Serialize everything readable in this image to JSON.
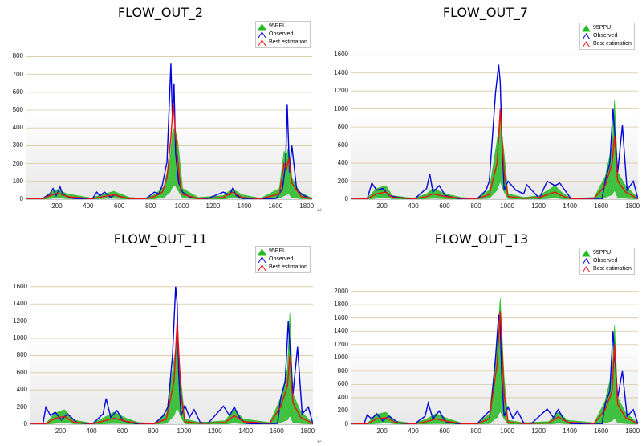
{
  "legend_labels": [
    "95PPU",
    "Observed",
    "Best estimation"
  ],
  "colors": {
    "ppu": "#22bb22",
    "observed": "#0000dd",
    "best": "#ee1111",
    "grid": "#d8c8a0"
  },
  "return_mark": "↵",
  "chart_data": [
    {
      "type": "line",
      "title": "FLOW_OUT_2",
      "xlim": [
        0,
        1830
      ],
      "ylim": [
        0,
        820
      ],
      "xticks": [
        200,
        400,
        600,
        800,
        1000,
        1200,
        1400,
        1600,
        1800
      ],
      "yticks": [
        0,
        100,
        200,
        300,
        400,
        500,
        600,
        700,
        800
      ],
      "grid": true,
      "legend_position": "top-right",
      "series": [
        {
          "name": "95PPU",
          "type": "band",
          "x": [
            0,
            100,
            160,
            200,
            260,
            420,
            460,
            560,
            600,
            660,
            760,
            820,
            880,
            920,
            935,
            950,
            970,
            1000,
            1100,
            1260,
            1320,
            1380,
            1500,
            1620,
            1650,
            1665,
            1680,
            1700,
            1750,
            1830
          ],
          "upper": [
            2,
            5,
            40,
            55,
            30,
            6,
            20,
            45,
            30,
            10,
            5,
            25,
            70,
            230,
            380,
            400,
            320,
            60,
            10,
            20,
            60,
            25,
            5,
            60,
            270,
            240,
            300,
            120,
            40,
            5
          ],
          "lower": [
            0,
            0,
            5,
            8,
            3,
            0,
            2,
            6,
            3,
            0,
            0,
            2,
            10,
            40,
            70,
            80,
            50,
            8,
            0,
            0,
            8,
            2,
            0,
            5,
            20,
            25,
            30,
            10,
            3,
            0
          ]
        },
        {
          "name": "Observed",
          "x": [
            0,
            100,
            150,
            170,
            190,
            215,
            230,
            260,
            300,
            420,
            450,
            470,
            500,
            540,
            560,
            600,
            650,
            760,
            820,
            850,
            870,
            900,
            925,
            935,
            945,
            955,
            975,
            1000,
            1050,
            1150,
            1260,
            1300,
            1320,
            1345,
            1370,
            1400,
            1500,
            1600,
            1640,
            1660,
            1670,
            1685,
            1700,
            1730,
            1760,
            1800,
            1830
          ],
          "y": [
            0,
            0,
            30,
            60,
            20,
            70,
            30,
            15,
            5,
            0,
            40,
            20,
            40,
            10,
            25,
            15,
            5,
            0,
            40,
            30,
            80,
            210,
            760,
            440,
            650,
            260,
            90,
            40,
            10,
            0,
            40,
            25,
            60,
            20,
            10,
            0,
            0,
            5,
            60,
            200,
            530,
            150,
            300,
            60,
            30,
            10,
            0
          ]
        },
        {
          "name": "Best estimation",
          "x": [
            0,
            100,
            150,
            200,
            260,
            420,
            460,
            560,
            600,
            660,
            760,
            820,
            870,
            900,
            925,
            940,
            960,
            990,
            1100,
            1260,
            1320,
            1380,
            1500,
            1620,
            1650,
            1665,
            1680,
            1700,
            1760,
            1830
          ],
          "y": [
            0,
            2,
            20,
            35,
            15,
            2,
            10,
            25,
            15,
            3,
            2,
            15,
            40,
            120,
            350,
            540,
            300,
            30,
            3,
            10,
            40,
            10,
            2,
            30,
            200,
            170,
            230,
            90,
            15,
            2
          ]
        }
      ]
    },
    {
      "type": "line",
      "title": "FLOW_OUT_7",
      "xlim": [
        0,
        1830
      ],
      "ylim": [
        0,
        1620
      ],
      "xticks": [
        200,
        400,
        600,
        800,
        1000,
        1200,
        1400,
        1600,
        1800
      ],
      "yticks": [
        0,
        200,
        400,
        600,
        800,
        1000,
        1200,
        1400,
        1600
      ],
      "grid": true,
      "legend_position": "top-right",
      "series": [
        {
          "name": "95PPU",
          "type": "band",
          "x": [
            0,
            100,
            160,
            220,
            260,
            400,
            480,
            520,
            600,
            700,
            800,
            880,
            930,
            950,
            975,
            1000,
            1100,
            1200,
            1300,
            1340,
            1400,
            1550,
            1620,
            1665,
            1680,
            1700,
            1750,
            1830
          ],
          "upper": [
            2,
            10,
            120,
            150,
            40,
            10,
            60,
            120,
            60,
            20,
            10,
            100,
            650,
            900,
            500,
            60,
            20,
            40,
            150,
            80,
            10,
            20,
            250,
            600,
            1100,
            300,
            150,
            10
          ],
          "lower": [
            0,
            0,
            10,
            20,
            5,
            0,
            5,
            10,
            5,
            0,
            0,
            10,
            100,
            200,
            80,
            5,
            0,
            0,
            15,
            5,
            0,
            0,
            20,
            50,
            100,
            20,
            10,
            0
          ]
        },
        {
          "name": "Observed",
          "x": [
            0,
            100,
            130,
            160,
            200,
            240,
            300,
            400,
            480,
            500,
            520,
            560,
            600,
            700,
            800,
            860,
            880,
            920,
            940,
            950,
            960,
            975,
            1000,
            1050,
            1100,
            1120,
            1200,
            1250,
            1300,
            1330,
            1400,
            1500,
            1600,
            1620,
            1650,
            1670,
            1700,
            1730,
            1760,
            1800,
            1830
          ],
          "y": [
            0,
            0,
            180,
            100,
            120,
            40,
            20,
            0,
            120,
            280,
            80,
            150,
            40,
            0,
            0,
            100,
            200,
            1180,
            1490,
            1300,
            700,
            100,
            200,
            100,
            60,
            160,
            10,
            200,
            150,
            180,
            10,
            0,
            0,
            200,
            400,
            1000,
            300,
            820,
            100,
            200,
            0
          ]
        },
        {
          "name": "Best estimation",
          "x": [
            0,
            100,
            160,
            220,
            260,
            400,
            480,
            520,
            600,
            700,
            800,
            880,
            930,
            950,
            975,
            1000,
            1100,
            1200,
            1300,
            1340,
            1400,
            1550,
            1620,
            1665,
            1680,
            1700,
            1750,
            1830
          ],
          "y": [
            0,
            5,
            60,
            80,
            20,
            5,
            30,
            60,
            30,
            10,
            5,
            50,
            400,
            1000,
            300,
            30,
            10,
            20,
            80,
            40,
            5,
            10,
            150,
            400,
            700,
            200,
            80,
            5
          ]
        }
      ]
    },
    {
      "type": "line",
      "title": "FLOW_OUT_11",
      "xlim": [
        0,
        1830
      ],
      "ylim": [
        0,
        1720
      ],
      "xticks": [
        200,
        400,
        600,
        800,
        1000,
        1200,
        1400,
        1600,
        1800
      ],
      "yticks": [
        0,
        200,
        400,
        600,
        800,
        1000,
        1200,
        1400,
        1600
      ],
      "grid": true,
      "legend_position": "top-right",
      "series": [
        {
          "name": "95PPU",
          "type": "band",
          "x": [
            0,
            100,
            160,
            220,
            280,
            400,
            480,
            540,
            620,
            700,
            800,
            880,
            930,
            950,
            975,
            1000,
            1100,
            1260,
            1320,
            1380,
            1550,
            1620,
            1665,
            1680,
            1700,
            1750,
            1830
          ],
          "upper": [
            2,
            10,
            130,
            170,
            50,
            10,
            80,
            140,
            70,
            20,
            10,
            120,
            750,
            1000,
            500,
            60,
            20,
            40,
            170,
            60,
            20,
            300,
            650,
            1300,
            350,
            150,
            10
          ],
          "lower": [
            0,
            0,
            10,
            20,
            5,
            0,
            5,
            10,
            5,
            0,
            0,
            10,
            100,
            200,
            80,
            5,
            0,
            0,
            15,
            5,
            0,
            20,
            50,
            100,
            20,
            10,
            0
          ]
        },
        {
          "name": "Observed",
          "x": [
            0,
            80,
            100,
            130,
            160,
            200,
            240,
            300,
            400,
            470,
            490,
            520,
            560,
            600,
            700,
            800,
            860,
            890,
            920,
            940,
            950,
            960,
            975,
            1000,
            1030,
            1060,
            1100,
            1150,
            1250,
            1290,
            1320,
            1360,
            1400,
            1500,
            1600,
            1620,
            1650,
            1670,
            1700,
            1730,
            1760,
            1800,
            1830
          ],
          "y": [
            0,
            0,
            200,
            100,
            140,
            50,
            120,
            20,
            0,
            120,
            300,
            80,
            160,
            40,
            0,
            0,
            100,
            200,
            800,
            1600,
            1400,
            600,
            100,
            220,
            80,
            170,
            20,
            10,
            210,
            100,
            200,
            60,
            10,
            0,
            0,
            300,
            500,
            1200,
            350,
            900,
            120,
            200,
            0
          ]
        },
        {
          "name": "Best estimation",
          "x": [
            0,
            100,
            160,
            220,
            280,
            400,
            480,
            540,
            620,
            700,
            800,
            880,
            930,
            950,
            975,
            1000,
            1100,
            1260,
            1320,
            1380,
            1550,
            1620,
            1665,
            1680,
            1700,
            1750,
            1830
          ],
          "y": [
            0,
            5,
            70,
            90,
            25,
            5,
            40,
            70,
            35,
            10,
            5,
            60,
            500,
            1200,
            350,
            30,
            10,
            20,
            100,
            30,
            10,
            200,
            450,
            800,
            250,
            80,
            5
          ]
        }
      ]
    },
    {
      "type": "line",
      "title": "FLOW_OUT_13",
      "xlim": [
        0,
        1830
      ],
      "ylim": [
        0,
        2080
      ],
      "xticks": [
        200,
        400,
        600,
        800,
        1000,
        1200,
        1400,
        1600,
        1800
      ],
      "yticks": [
        0,
        200,
        400,
        600,
        800,
        1000,
        1200,
        1400,
        1600,
        1800,
        2000
      ],
      "grid": true,
      "legend_position": "top-right",
      "series": [
        {
          "name": "95PPU",
          "type": "band",
          "x": [
            0,
            100,
            160,
            220,
            280,
            400,
            480,
            540,
            620,
            700,
            800,
            880,
            930,
            950,
            975,
            1000,
            1100,
            1260,
            1320,
            1380,
            1550,
            1620,
            1665,
            1680,
            1700,
            1750,
            1830
          ],
          "upper": [
            2,
            10,
            150,
            180,
            50,
            10,
            80,
            160,
            80,
            20,
            10,
            150,
            1200,
            1900,
            700,
            60,
            20,
            40,
            180,
            60,
            20,
            350,
            800,
            1500,
            400,
            180,
            10
          ],
          "lower": [
            0,
            0,
            10,
            20,
            5,
            0,
            5,
            10,
            5,
            0,
            0,
            10,
            100,
            200,
            80,
            5,
            0,
            0,
            15,
            5,
            0,
            20,
            50,
            100,
            20,
            10,
            0
          ]
        },
        {
          "name": "Observed",
          "x": [
            0,
            80,
            100,
            130,
            160,
            200,
            240,
            300,
            400,
            470,
            490,
            520,
            560,
            600,
            700,
            800,
            860,
            890,
            920,
            940,
            950,
            960,
            975,
            1000,
            1030,
            1060,
            1100,
            1150,
            1250,
            1290,
            1320,
            1360,
            1400,
            1500,
            1600,
            1620,
            1650,
            1670,
            1700,
            1730,
            1760,
            1800,
            1830
          ],
          "y": [
            0,
            0,
            140,
            80,
            160,
            50,
            120,
            20,
            0,
            120,
            320,
            80,
            200,
            40,
            0,
            0,
            150,
            220,
            1000,
            1650,
            1500,
            700,
            120,
            260,
            90,
            200,
            20,
            10,
            230,
            100,
            220,
            60,
            10,
            0,
            0,
            300,
            500,
            1400,
            400,
            800,
            120,
            220,
            0
          ]
        },
        {
          "name": "Best estimation",
          "x": [
            0,
            100,
            160,
            220,
            280,
            400,
            480,
            540,
            620,
            700,
            800,
            880,
            930,
            950,
            975,
            1000,
            1100,
            1260,
            1320,
            1380,
            1550,
            1620,
            1665,
            1680,
            1700,
            1750,
            1830
          ],
          "y": [
            0,
            5,
            80,
            100,
            25,
            5,
            40,
            80,
            40,
            10,
            5,
            80,
            900,
            1700,
            450,
            30,
            10,
            20,
            110,
            30,
            10,
            220,
            500,
            1200,
            300,
            100,
            5
          ]
        }
      ]
    }
  ]
}
